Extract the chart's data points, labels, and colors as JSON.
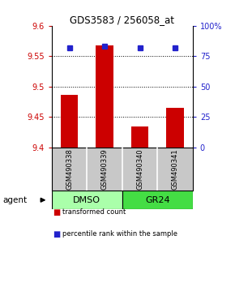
{
  "title": "GDS3583 / 256058_at",
  "samples": [
    "GSM490338",
    "GSM490339",
    "GSM490340",
    "GSM490341"
  ],
  "bar_values": [
    9.487,
    9.568,
    9.435,
    9.465
  ],
  "percentile_values": [
    82,
    83,
    82,
    82
  ],
  "ylim_left": [
    9.4,
    9.6
  ],
  "ylim_right": [
    0,
    100
  ],
  "yticks_left": [
    9.4,
    9.45,
    9.5,
    9.55,
    9.6
  ],
  "yticks_right": [
    0,
    25,
    50,
    75,
    100
  ],
  "bar_color": "#cc0000",
  "dot_color": "#2222cc",
  "group_colors": [
    "#aaffaa",
    "#44dd44"
  ],
  "groups": [
    {
      "label": "DMSO",
      "samples": [
        0,
        1
      ]
    },
    {
      "label": "GR24",
      "samples": [
        2,
        3
      ]
    }
  ],
  "group_label": "agent",
  "legend_items": [
    {
      "label": "transformed count",
      "color": "#cc0000"
    },
    {
      "label": "percentile rank within the sample",
      "color": "#2222cc"
    }
  ],
  "sample_box_color": "#c8c8c8",
  "bar_width": 0.5
}
